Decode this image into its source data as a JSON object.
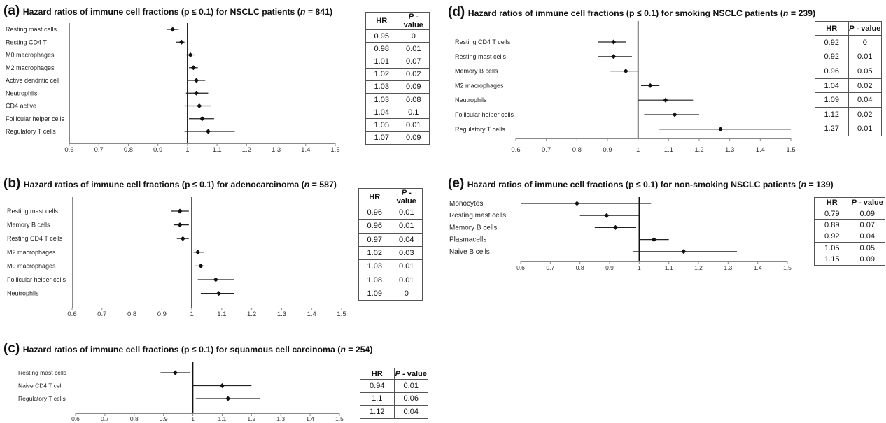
{
  "table_headers": {
    "hr": "HR",
    "p_main": "P",
    "p_rest": " - value"
  },
  "panels": [
    {
      "id": "a",
      "letter": "(a)",
      "title_pre": "Hazard ratios of immune cell fractions (p ≤ 0.1) for NSCLC patients (",
      "title_n": "n",
      "title_post": " = 841)",
      "rows": [
        {
          "label": "Resting mast cells",
          "hr": "0.95",
          "p": "0"
        },
        {
          "label": "Resting CD4 T",
          "hr": "0.98",
          "p": "0.01"
        },
        {
          "label": "M0 macrophages",
          "hr": "1.01",
          "p": "0.07"
        },
        {
          "label": "M2 macrophages",
          "hr": "1.02",
          "p": "0.02"
        },
        {
          "label": "Active dendritic cell",
          "hr": "1.03",
          "p": "0.09"
        },
        {
          "label": "Neutrophils",
          "hr": "1.03",
          "p": "0.08"
        },
        {
          "label": "CD4 active",
          "hr": "1.04",
          "p": "0.1"
        },
        {
          "label": "Follicular helper cells",
          "hr": "1.05",
          "p": "0.01"
        },
        {
          "label": "Regulatory T cells",
          "hr": "1.07",
          "p": "0.09"
        }
      ]
    },
    {
      "id": "b",
      "letter": "(b)",
      "title_pre": "Hazard ratios of immune cell fractions (p ≤ 0.1) for adenocarcinoma (",
      "title_n": "n",
      "title_post": " = 587)",
      "rows": [
        {
          "label": "Resting mast cells",
          "hr": "0.96",
          "p": "0.01"
        },
        {
          "label": "Memory B cells",
          "hr": "0.96",
          "p": "0.01"
        },
        {
          "label": "Resting CD4 T cells",
          "hr": "0.97",
          "p": "0.04"
        },
        {
          "label": "M2 macrophages",
          "hr": "1.02",
          "p": "0.03"
        },
        {
          "label": "M0 macrophages",
          "hr": "1.03",
          "p": "0.01"
        },
        {
          "label": "Follicular helper cells",
          "hr": "1.08",
          "p": "0.01"
        },
        {
          "label": "Neutrophils",
          "hr": "1.09",
          "p": "0"
        }
      ]
    },
    {
      "id": "c",
      "letter": "(c)",
      "title_pre": "Hazard ratios of immune cell fractions (p ≤ 0.1) for squamous cell carcinoma (",
      "title_n": "n",
      "title_post": " = 254)",
      "rows": [
        {
          "label": "Resting mast cells",
          "hr": "0.94",
          "p": "0.01"
        },
        {
          "label": "Naive CD4 T cell",
          "hr": "1.1",
          "p": "0.06"
        },
        {
          "label": "Regulatory T cells",
          "hr": "1.12",
          "p": "0.04"
        }
      ]
    },
    {
      "id": "d",
      "letter": "(d)",
      "title_pre": "Hazard ratios of immune cell fractions (p ≤ 0.1) for smoking NSCLC patients (",
      "title_n": "n",
      "title_post": " = 239)",
      "rows": [
        {
          "label": "Resting CD4 T cells",
          "hr": "0.92",
          "p": "0"
        },
        {
          "label": "Resting mast cells",
          "hr": "0.92",
          "p": "0.01"
        },
        {
          "label": "Memory B cells",
          "hr": "0.96",
          "p": "0.05"
        },
        {
          "label": "M2 macrophages",
          "hr": "1.04",
          "p": "0.02"
        },
        {
          "label": "Neutrophils",
          "hr": "1.09",
          "p": "0.04"
        },
        {
          "label": "Follicular helper cells",
          "hr": "1.12",
          "p": "0.02"
        },
        {
          "label": "Regulatory T cells",
          "hr": "1.27",
          "p": "0.01"
        }
      ]
    },
    {
      "id": "e",
      "letter": "(e)",
      "title_pre": "Hazard ratios of immune cell fractions (p ≤ 0.1) for non-smoking NSCLC patients (",
      "title_n": "n",
      "title_post": " = 139)",
      "rows": [
        {
          "label": "Monocytes",
          "hr": "0.79",
          "p": "0.09"
        },
        {
          "label": "Resting mast cells",
          "hr": "0.89",
          "p": "0.07"
        },
        {
          "label": "Memory B cells",
          "hr": "0.92",
          "p": "0.04"
        },
        {
          "label": "Plasmacells",
          "hr": "1.05",
          "p": "0.05"
        },
        {
          "label": "Naive B cells",
          "hr": "1.15",
          "p": "0.09"
        }
      ]
    }
  ],
  "chart_data": [
    {
      "type": "forest",
      "panel": "a",
      "xlim": [
        0.6,
        1.5
      ],
      "xticks": [
        "0.6",
        "0.7",
        "0.8",
        "0.9",
        "1",
        "1.1",
        "1.2",
        "1.3",
        "1.4",
        "1.5"
      ],
      "reference_line": 1,
      "categories": [
        "Resting mast cells",
        "Resting CD4 T",
        "M0 macrophages",
        "M2 macrophages",
        "Active dendritic cell",
        "Neutrophils",
        "CD4 active",
        "Follicular helper cells",
        "Regulatory T cells"
      ],
      "hr": [
        0.95,
        0.98,
        1.01,
        1.02,
        1.03,
        1.03,
        1.04,
        1.05,
        1.07
      ],
      "ci_low": [
        0.93,
        0.96,
        0.995,
        1.005,
        1.0,
        0.995,
        0.99,
        1.005,
        0.99
      ],
      "ci_high": [
        0.97,
        0.99,
        1.025,
        1.035,
        1.06,
        1.07,
        1.08,
        1.09,
        1.16
      ]
    },
    {
      "type": "forest",
      "panel": "b",
      "xlim": [
        0.6,
        1.5
      ],
      "xticks": [
        "0.6",
        "0.7",
        "0.8",
        "0.9",
        "1",
        "1.1",
        "1.2",
        "1.3",
        "1.4",
        "1.5"
      ],
      "reference_line": 1,
      "categories": [
        "Resting mast cells",
        "Memory B cells",
        "Resting CD4 T cells",
        "M2 macrophages",
        "M0 macrophages",
        "Follicular helper cells",
        "Neutrophils"
      ],
      "hr": [
        0.96,
        0.96,
        0.97,
        1.02,
        1.03,
        1.08,
        1.09
      ],
      "ci_low": [
        0.93,
        0.94,
        0.95,
        1.005,
        1.01,
        1.02,
        1.03
      ],
      "ci_high": [
        0.99,
        0.99,
        0.99,
        1.04,
        1.04,
        1.14,
        1.14
      ]
    },
    {
      "type": "forest",
      "panel": "c",
      "xlim": [
        0.6,
        1.5
      ],
      "xticks": [
        "0.6",
        "0.7",
        "0.8",
        "0.9",
        "1",
        "1.1",
        "1.2",
        "1.3",
        "1.4",
        "1.5"
      ],
      "reference_line": 1,
      "categories": [
        "Resting mast cells",
        "Naive CD4 T cell",
        "Regulatory T cells"
      ],
      "hr": [
        0.94,
        1.1,
        1.12
      ],
      "ci_low": [
        0.89,
        1.0,
        1.01
      ],
      "ci_high": [
        0.99,
        1.2,
        1.23
      ]
    },
    {
      "type": "forest",
      "panel": "d",
      "xlim": [
        0.6,
        1.5
      ],
      "xticks": [
        "0.6",
        "0.7",
        "0.8",
        "0.9",
        "1",
        "1.1",
        "1.2",
        "1.3",
        "1.4",
        "1.5"
      ],
      "reference_line": 1,
      "categories": [
        "Resting CD4 T cells",
        "Resting mast cells",
        "Memory B cells",
        "M2 macrophages",
        "Neutrophils",
        "Follicular helper cells",
        "Regulatory T cells"
      ],
      "hr": [
        0.92,
        0.92,
        0.96,
        1.04,
        1.09,
        1.12,
        1.27
      ],
      "ci_low": [
        0.87,
        0.87,
        0.91,
        1.01,
        1.0,
        1.02,
        1.07
      ],
      "ci_high": [
        0.96,
        0.98,
        1.0,
        1.07,
        1.18,
        1.2,
        1.5
      ]
    },
    {
      "type": "forest",
      "panel": "e",
      "xlim": [
        0.6,
        1.5
      ],
      "xticks": [
        "0.6",
        "0.7",
        "0.8",
        "0.9",
        "1",
        "1.1",
        "1.2",
        "1.3",
        "1.4",
        "1.5"
      ],
      "reference_line": 1,
      "categories": [
        "Monocytes",
        "Resting mast cells",
        "Memory B cells",
        "Plasmacells",
        "Naive B cells"
      ],
      "hr": [
        0.79,
        0.89,
        0.92,
        1.05,
        1.15
      ],
      "ci_low": [
        0.6,
        0.8,
        0.85,
        1.0,
        0.98
      ],
      "ci_high": [
        1.04,
        1.0,
        0.99,
        1.1,
        1.33
      ]
    }
  ]
}
